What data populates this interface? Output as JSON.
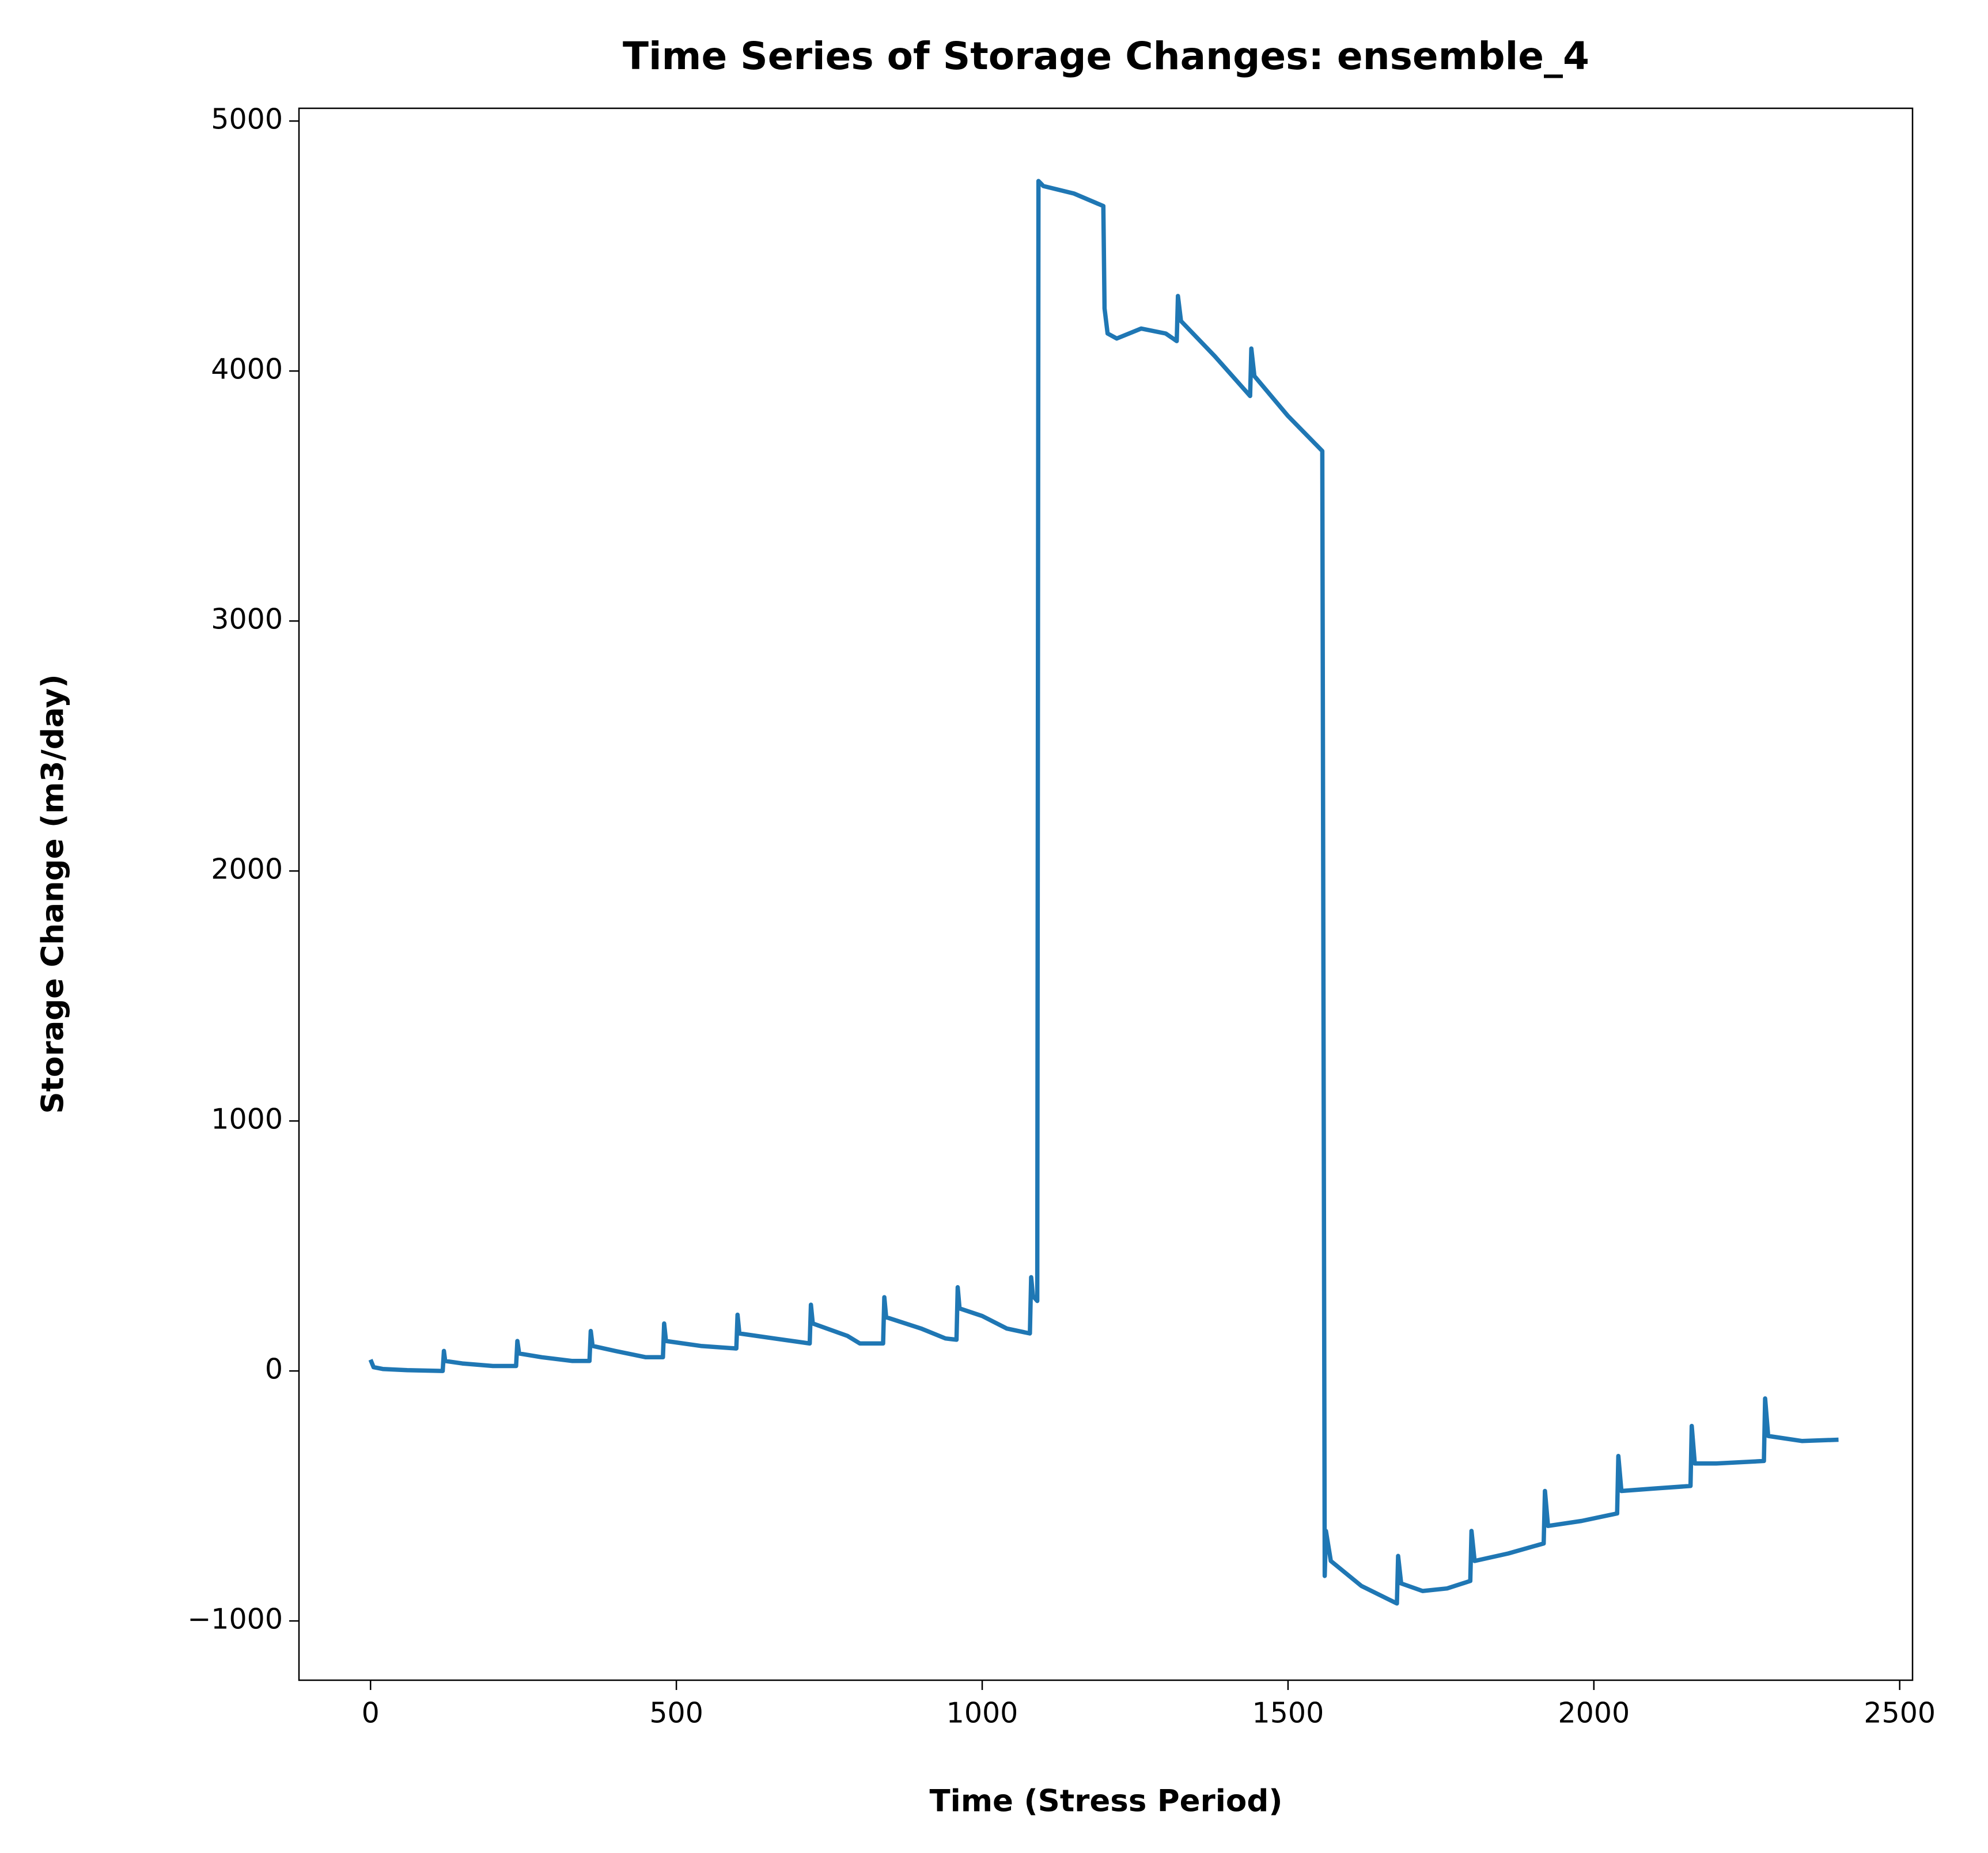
{
  "chart_data": {
    "type": "line",
    "title": "Time Series of Storage Changes: ensemble_4",
    "xlabel": "Time (Stress Period)",
    "ylabel": "Storage Change (m3/day)",
    "x": [
      0,
      5,
      20,
      60,
      118,
      120,
      122,
      150,
      200,
      238,
      240,
      243,
      280,
      330,
      358,
      360,
      363,
      400,
      450,
      478,
      480,
      483,
      540,
      598,
      600,
      603,
      660,
      718,
      720,
      723,
      780,
      800,
      838,
      840,
      843,
      900,
      940,
      958,
      960,
      963,
      1000,
      1040,
      1078,
      1080,
      1083,
      1090,
      1092,
      1100,
      1150,
      1198,
      1200,
      1205,
      1220,
      1260,
      1300,
      1318,
      1320,
      1325,
      1380,
      1438,
      1440,
      1445,
      1500,
      1556,
      1560,
      1562,
      1570,
      1620,
      1678,
      1680,
      1685,
      1720,
      1760,
      1798,
      1800,
      1805,
      1860,
      1918,
      1920,
      1925,
      1980,
      2038,
      2040,
      2045,
      2100,
      2158,
      2160,
      2165,
      2200,
      2278,
      2280,
      2285,
      2340,
      2400
    ],
    "series": [
      {
        "name": "ensemble_4",
        "color": "#1f77b4",
        "values": [
          45,
          15,
          8,
          3,
          0,
          80,
          40,
          30,
          20,
          20,
          120,
          70,
          55,
          40,
          40,
          160,
          100,
          80,
          55,
          55,
          190,
          120,
          100,
          90,
          225,
          150,
          130,
          110,
          265,
          190,
          140,
          110,
          110,
          295,
          215,
          170,
          130,
          125,
          335,
          250,
          220,
          170,
          150,
          375,
          300,
          280,
          4760,
          4740,
          4710,
          4660,
          4250,
          4150,
          4130,
          4170,
          4150,
          4120,
          4300,
          4200,
          4060,
          3900,
          4090,
          3980,
          3820,
          3680,
          -820,
          -640,
          -760,
          -860,
          -930,
          -740,
          -850,
          -880,
          -870,
          -840,
          -640,
          -760,
          -730,
          -690,
          -480,
          -620,
          -600,
          -570,
          -340,
          -480,
          -470,
          -460,
          -220,
          -370,
          -370,
          -360,
          -110,
          -260,
          -280,
          -275
        ]
      }
    ],
    "xlim": [
      -117,
      2521
    ],
    "ylim": [
      -1237,
      5051
    ],
    "xticks": [
      0,
      500,
      1000,
      1500,
      2000,
      2500
    ],
    "yticks": [
      {
        "value": -1000,
        "label": "−1000"
      },
      0,
      1000,
      2000,
      3000,
      4000,
      5000
    ]
  }
}
